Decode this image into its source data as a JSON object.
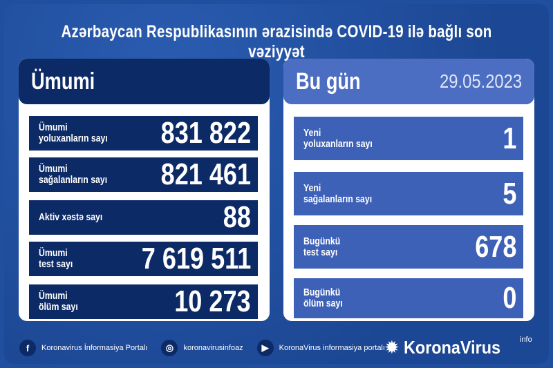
{
  "title": "Azərbaycan Respublikasının ərazisində COVID-19 ilə bağlı son vəziyyət",
  "left": {
    "header": "Ümumi",
    "rows": [
      {
        "label": "Ümumi\nyoluxanların sayı",
        "value": "831 822"
      },
      {
        "label": "Ümumi\nsağalanların sayı",
        "value": "821 461"
      },
      {
        "label": "Aktiv xəstə sayı",
        "value": "88"
      },
      {
        "label": "Ümumi\ntest sayı",
        "value": "7 619 511"
      },
      {
        "label": "Ümumi\nölüm sayı",
        "value": "10 273"
      }
    ]
  },
  "right": {
    "header": "Bu gün",
    "date": "29.05.2023",
    "rows": [
      {
        "label": "Yeni\nyoluxanların sayı",
        "value": "1"
      },
      {
        "label": "Yeni\nsağalanların sayı",
        "value": "5"
      },
      {
        "label": "Bugünkü\ntest sayı",
        "value": "678"
      },
      {
        "label": "Bugünkü\nölüm sayı",
        "value": "0"
      }
    ]
  },
  "footer": {
    "facebook": "Koronavirus İnformasiya Portalı",
    "instagram": "koronavirusinfoaz",
    "youtube": "KoronaVirus informasiya portalı"
  },
  "brand": {
    "name": "KoronaVirus",
    "suffix": "info"
  }
}
